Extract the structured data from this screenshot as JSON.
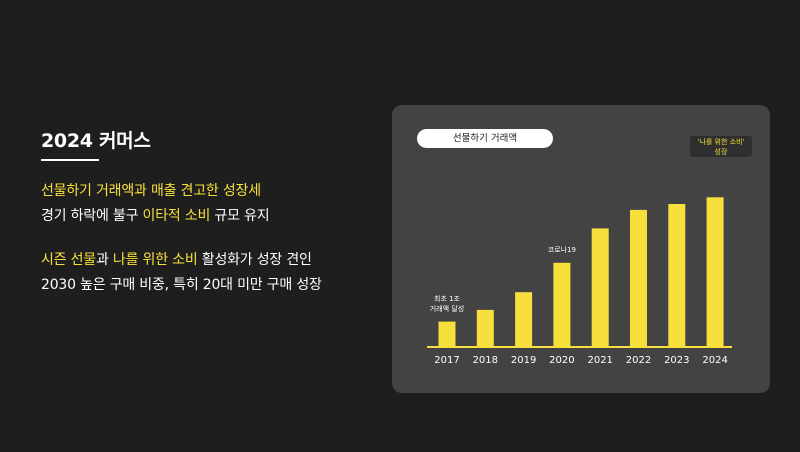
{
  "heading": "2024 커머스",
  "lines": [
    {
      "segments": [
        {
          "text": "선물하기 거래액과 매출 견고한 성장세",
          "hl": true
        }
      ]
    },
    {
      "segments": [
        {
          "text": "경기 하락에 불구 ",
          "hl": false
        },
        {
          "text": "이타적 소비",
          "hl": true
        },
        {
          "text": " 규모 유지",
          "hl": false
        }
      ]
    },
    {
      "segments": [
        {
          "text": "시즌 선물",
          "hl": true
        },
        {
          "text": "과 ",
          "hl": false
        },
        {
          "text": "나를 위한 소비",
          "hl": true
        },
        {
          "text": " 활성화가 성장 견인",
          "hl": false
        }
      ]
    },
    {
      "segments": [
        {
          "text": "2030 높은 구매 비중, 특히 20대 미만 구매 성장",
          "hl": false
        }
      ]
    }
  ],
  "chart_data": {
    "type": "bar",
    "title": "선물하기 거래액",
    "categories": [
      "2017",
      "2018",
      "2019",
      "2020",
      "2021",
      "2022",
      "2023",
      "2024"
    ],
    "values": [
      29,
      43,
      64,
      99,
      140,
      162,
      169,
      177
    ],
    "annotations": [
      {
        "category": "2017",
        "text_lines": [
          "최초 1조",
          "거래액 달성"
        ]
      },
      {
        "category": "2020",
        "text_lines": [
          "코로나19"
        ]
      },
      {
        "category": "2024",
        "text_lines": [
          "'나를 위한 소비'",
          "성장"
        ]
      }
    ],
    "colors": {
      "bar": "#f7e03c",
      "panel": "#434343",
      "highlight": "#f7e03c"
    },
    "ylim": [
      0,
      200
    ],
    "grid": false,
    "legend": "none"
  }
}
